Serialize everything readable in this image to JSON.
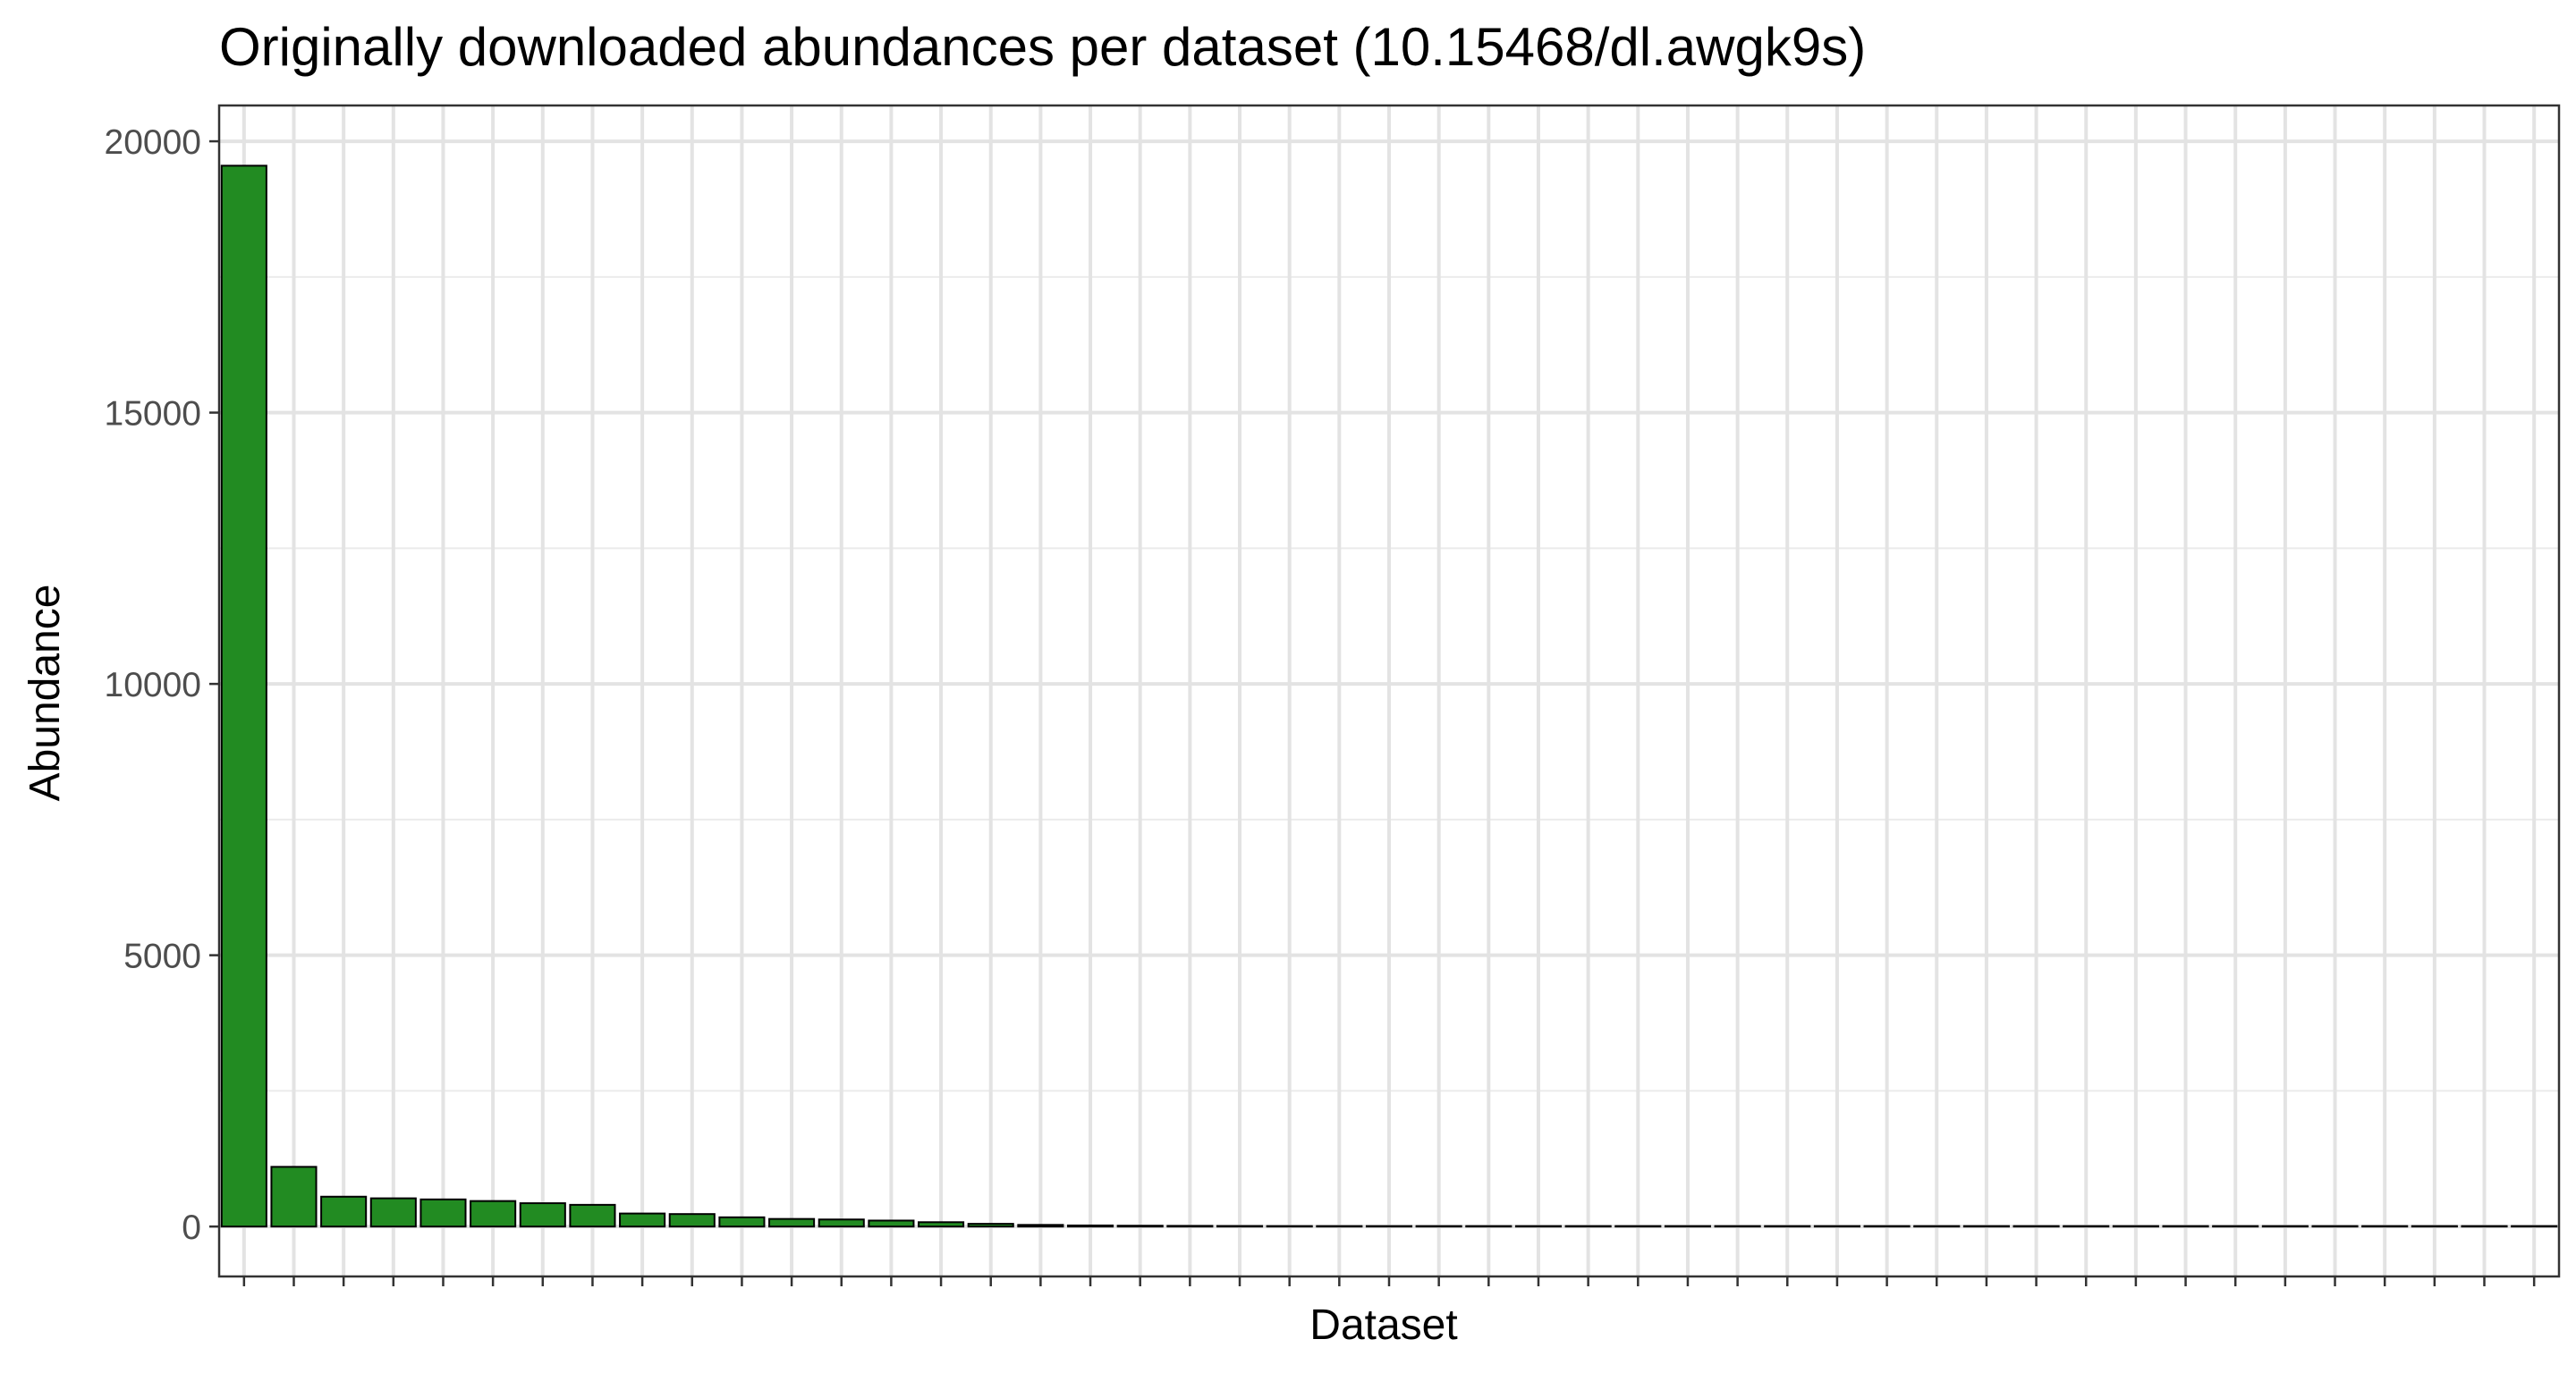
{
  "chart_data": {
    "type": "bar",
    "title": "Originally downloaded abundances per dataset (10.15468/dl.awgk9s)",
    "xlabel": "Dataset",
    "ylabel": "Abundance",
    "ylim": [
      -920,
      20660
    ],
    "yticks": [
      0,
      5000,
      10000,
      15000,
      20000
    ],
    "grid": true,
    "legend": "none",
    "bar_fill": "#228b22",
    "bar_outline": "#000000",
    "values": [
      19550,
      1100,
      550,
      520,
      500,
      470,
      430,
      400,
      240,
      230,
      170,
      140,
      130,
      110,
      80,
      50,
      30,
      20,
      15,
      12,
      10,
      8,
      6,
      5,
      5,
      4,
      4,
      3,
      3,
      3,
      2,
      2,
      2,
      2,
      2,
      1,
      1,
      1,
      1,
      1,
      1,
      1,
      1,
      1,
      1,
      1,
      1
    ]
  }
}
